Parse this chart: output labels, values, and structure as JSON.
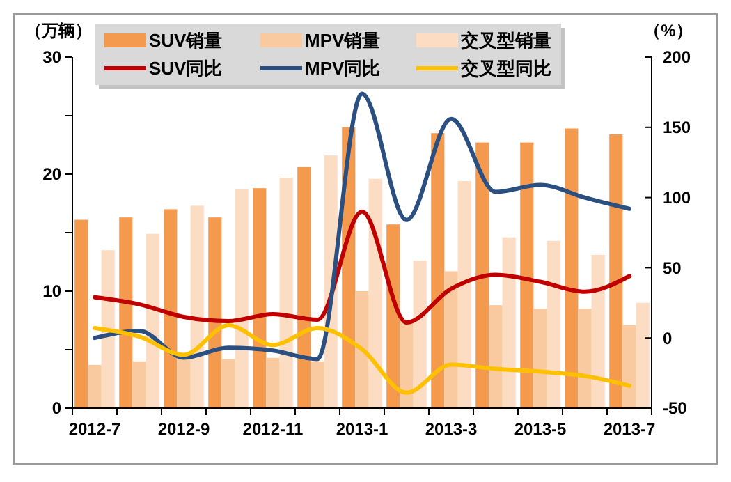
{
  "chart_data": {
    "type": "bar",
    "ylabel": "（万辆）",
    "y2label": "（%）",
    "categories": [
      "2012-7",
      null,
      "2012-9",
      null,
      "2012-11",
      null,
      "2013-1",
      null,
      "2013-3",
      null,
      "2013-5",
      null,
      "2013-7"
    ],
    "series": [
      {
        "name": "SUV销量",
        "color": "#f39a4f",
        "values": [
          16.1,
          16.3,
          17.0,
          16.3,
          18.8,
          20.6,
          24.0,
          15.7,
          23.5,
          22.7,
          22.7,
          23.9,
          23.4
        ]
      },
      {
        "name": "MPV销量",
        "color": "#f9c9a0",
        "values": [
          3.7,
          4.0,
          4.2,
          4.2,
          4.3,
          4.0,
          10.0,
          7.5,
          11.7,
          8.8,
          8.5,
          8.5,
          7.1
        ]
      },
      {
        "name": "交叉型销量",
        "color": "#fddcc4",
        "values": [
          13.5,
          14.9,
          17.3,
          18.7,
          19.7,
          21.6,
          19.6,
          12.6,
          19.4,
          14.6,
          14.3,
          13.1,
          9.0
        ]
      },
      {
        "name": "SUV同比",
        "type": "line",
        "axis": "y2",
        "color": "#c00000",
        "values": [
          29,
          24,
          15,
          12,
          17,
          13,
          90,
          11,
          35,
          45,
          40,
          33,
          44
        ]
      },
      {
        "name": "MPV同比",
        "type": "line",
        "axis": "y2",
        "color": "#2b4f80",
        "values": [
          0,
          5,
          -14,
          -7,
          -9,
          -15,
          174,
          84,
          156,
          104,
          109,
          100,
          92
        ]
      },
      {
        "name": "交叉型同比",
        "type": "line",
        "axis": "y2",
        "color": "#ffc000",
        "values": [
          7,
          1,
          -12,
          9,
          -5,
          7,
          -8,
          -39,
          -19,
          -22,
          -24,
          -27,
          -34
        ]
      }
    ],
    "ylim": [
      0,
      30
    ],
    "yticks": [
      0,
      {
        "value": 5,
        "label": null
      },
      10,
      {
        "value": 15,
        "label": null
      },
      20,
      {
        "value": 25,
        "label": null
      },
      30
    ],
    "y2lim": [
      -50,
      200
    ],
    "y2ticks": [
      -50,
      0,
      50,
      100,
      150,
      200
    ],
    "legend": "top"
  }
}
